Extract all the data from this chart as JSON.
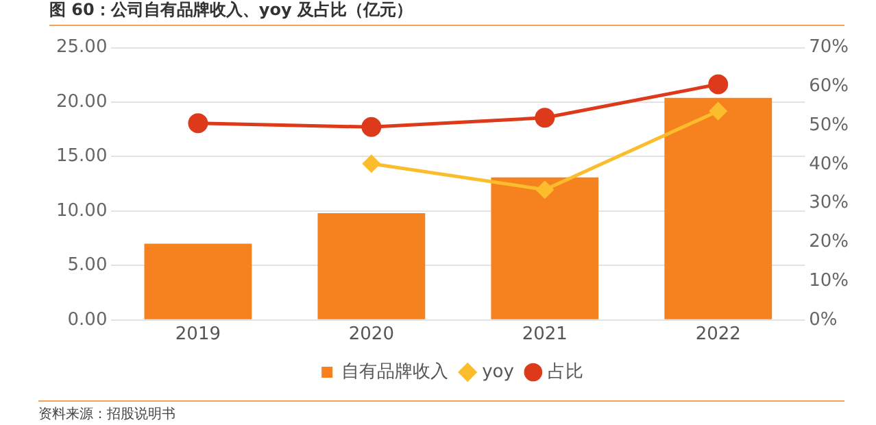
{
  "chart_data": {
    "type": "bar",
    "title": "图 60：公司自有品牌收入、yoy 及占比（亿元）",
    "categories": [
      "2019",
      "2020",
      "2021",
      "2022"
    ],
    "series": [
      {
        "name": "自有品牌收入",
        "color": "#f5821f",
        "values": [
          7.0,
          9.8,
          13.1,
          20.4
        ]
      },
      {
        "name": "yoy",
        "type": "line",
        "axis": "y2",
        "color": "#fbbd2c",
        "marker": "diamond",
        "values": [
          null,
          40.2,
          33.5,
          53.7
        ]
      },
      {
        "name": "占比",
        "type": "line",
        "axis": "y2",
        "color": "#dd3a1c",
        "marker": "circle",
        "values": [
          50.6,
          49.6,
          52.0,
          60.6
        ]
      }
    ],
    "ylim": [
      0,
      25
    ],
    "yticks": [
      {
        "value": 0,
        "label": "0.00"
      },
      {
        "value": 5,
        "label": "5.00"
      },
      {
        "value": 10,
        "label": "10.00"
      },
      {
        "value": 15,
        "label": "15.00"
      },
      {
        "value": 20,
        "label": "20.00"
      },
      {
        "value": 25,
        "label": "25.00"
      }
    ],
    "y2lim": [
      0,
      70
    ],
    "y2ticks": [
      {
        "value": 0,
        "label": "0%"
      },
      {
        "value": 10,
        "label": "10%"
      },
      {
        "value": 20,
        "label": "20%"
      },
      {
        "value": 30,
        "label": "30%"
      },
      {
        "value": 40,
        "label": "40%"
      },
      {
        "value": 50,
        "label": "50%"
      },
      {
        "value": 60,
        "label": "60%"
      },
      {
        "value": 70,
        "label": "70%"
      }
    ],
    "grid": "y",
    "legend": "bottom",
    "annotations": [
      "资料来源：招股说明书"
    ]
  }
}
